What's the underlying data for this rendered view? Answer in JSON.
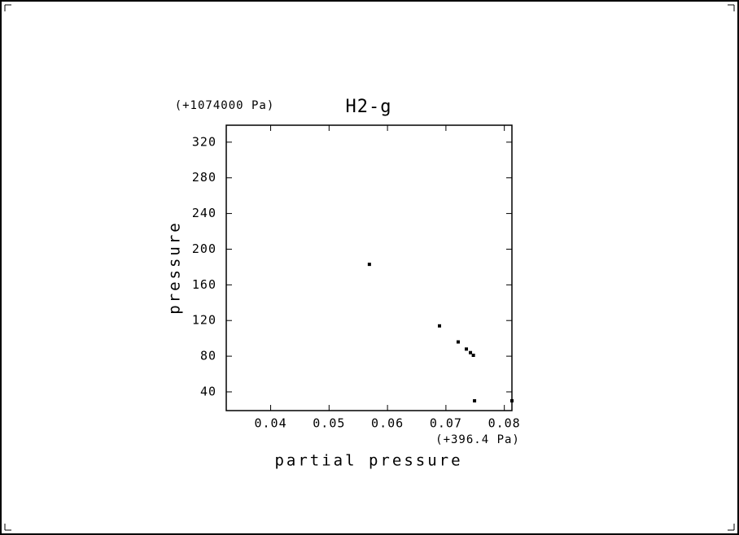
{
  "chart_data": {
    "type": "scatter",
    "title": "H2-g",
    "x_label": "partial pressure",
    "y_label": "pressure",
    "x_offset_label": "(+396.4 Pa)",
    "y_offset_label": "(+1074000 Pa)",
    "x": [
      0.0569,
      0.0689,
      0.0721,
      0.0735,
      0.0742,
      0.0747,
      0.0749,
      0.0813
    ],
    "values": [
      183,
      114,
      96,
      88,
      84,
      81,
      30,
      30
    ],
    "color": "#000000",
    "xlim": [
      0.0324,
      0.0813
    ],
    "ylim": [
      19,
      339
    ],
    "xticks": [
      0.04,
      0.05,
      0.06,
      0.07,
      0.08
    ],
    "yticks": [
      40,
      80,
      120,
      160,
      200,
      240,
      280,
      320
    ],
    "grid": false
  }
}
